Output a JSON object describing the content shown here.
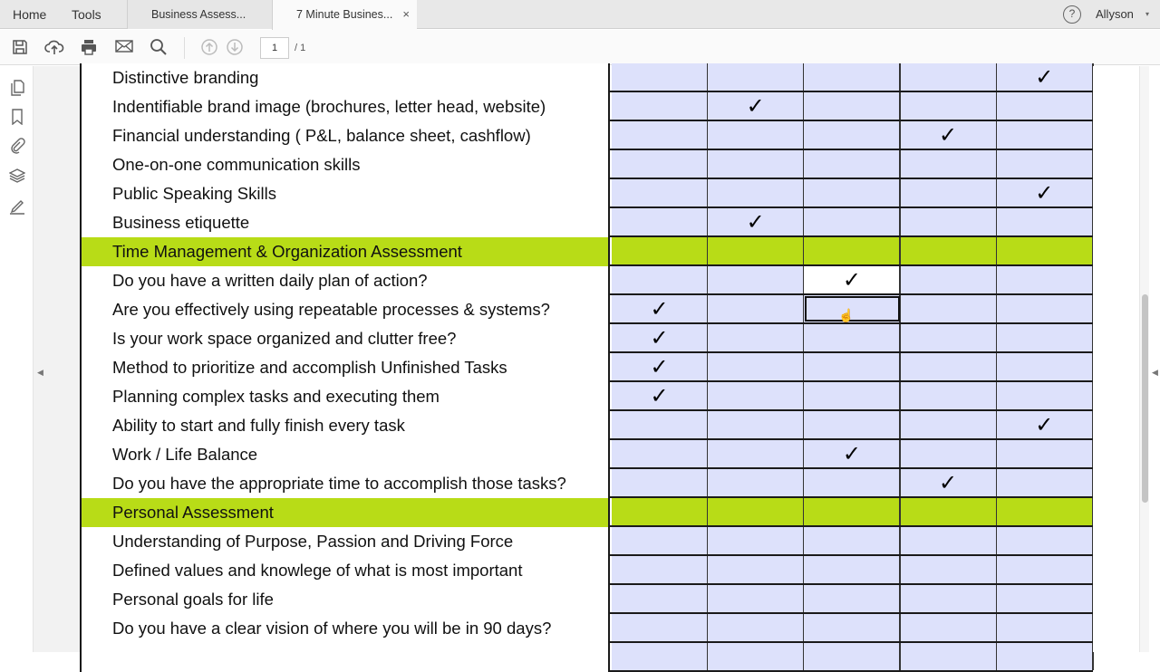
{
  "tabbar": {
    "home": "Home",
    "tools": "Tools",
    "tabs": [
      {
        "label": "Business Assess..."
      },
      {
        "label": "7 Minute Busines...",
        "close": "×"
      }
    ],
    "help": "?",
    "user": "Allyson",
    "caret": "▾"
  },
  "toolbar": {
    "page_current": "1",
    "page_total": "/ 1",
    "icons": [
      "save-icon",
      "upload-icon",
      "print-icon",
      "email-icon",
      "search-icon",
      "page-up-icon",
      "page-down-icon"
    ]
  },
  "sidebar": {
    "icons": [
      "pages-icon",
      "bookmark-icon",
      "attachment-icon",
      "layers-icon",
      "signature-icon"
    ]
  },
  "colors": {
    "section_header": "#b8dc17",
    "cell": "#dde1fb"
  },
  "table": {
    "check": "✓",
    "rows": [
      {
        "label": "Distinctive branding",
        "check": 4
      },
      {
        "label": "Indentifiable brand image (brochures, letter head, website)",
        "check": 1
      },
      {
        "label": "Financial understanding ( P&L, balance sheet, cashflow)",
        "check": 3
      },
      {
        "label": "One-on-one communication skills",
        "check": null
      },
      {
        "label": "Public Speaking Skills",
        "check": 4
      },
      {
        "label": "Business etiquette",
        "check": 1
      },
      {
        "label": "Time Management & Organization Assessment",
        "header": true
      },
      {
        "label": "Do you have a written daily plan of action?",
        "check": 2
      },
      {
        "label": "Are you effectively using repeatable processes & systems?",
        "check": 0
      },
      {
        "label": "Is your work space organized and clutter free?",
        "check": 0
      },
      {
        "label": "Method to prioritize and accomplish Unfinished Tasks",
        "check": 0
      },
      {
        "label": "Planning complex tasks and executing them",
        "check": 0
      },
      {
        "label": "Ability to start and fully finish every task",
        "check": 4
      },
      {
        "label": "Work / Life Balance",
        "check": 2
      },
      {
        "label": "Do you have the appropriate time to accomplish those tasks?",
        "check": 3
      },
      {
        "label": "Personal Assessment",
        "header": true
      },
      {
        "label": "Understanding of Purpose, Passion and Driving Force",
        "check": null
      },
      {
        "label": "Defined values and knowlege of what is most important",
        "check": null
      },
      {
        "label": "Personal goals for life",
        "check": null
      },
      {
        "label": "Do you have a clear vision of where you will be in 90 days?",
        "check": null
      },
      {
        "label": "",
        "check": null
      }
    ]
  }
}
